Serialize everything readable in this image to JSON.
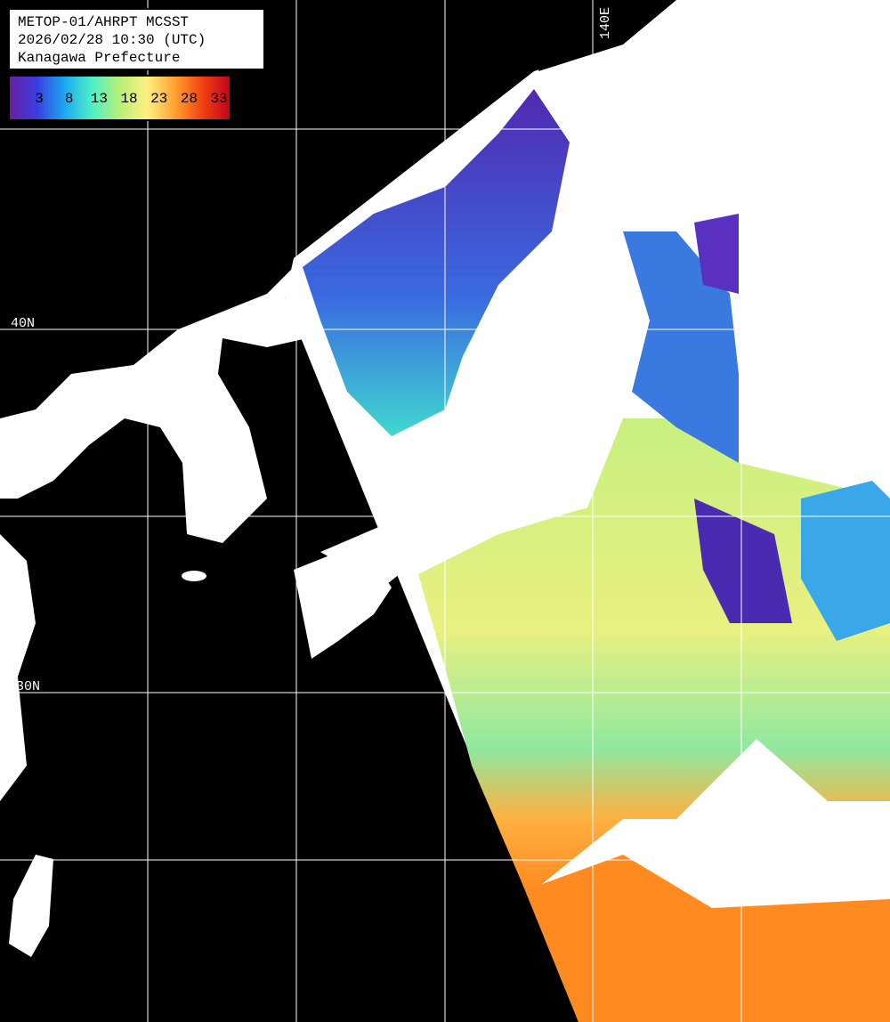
{
  "header": {
    "lines": [
      "METOP-01/AHRPT MCSST",
      "2026/02/28 10:30 (UTC)",
      "Kanagawa Prefecture"
    ]
  },
  "colorbar": {
    "ticks": [
      3,
      8,
      13,
      18,
      23,
      28,
      33
    ],
    "colors": [
      "#6a1fa0",
      "#3a3ce0",
      "#1aa8f0",
      "#4ef0c8",
      "#b8f078",
      "#fff080",
      "#ffa030",
      "#f04010",
      "#c00020"
    ]
  },
  "grid_labels": {
    "lon": [
      "140E"
    ],
    "lat": [
      "40N",
      "30N"
    ]
  }
}
